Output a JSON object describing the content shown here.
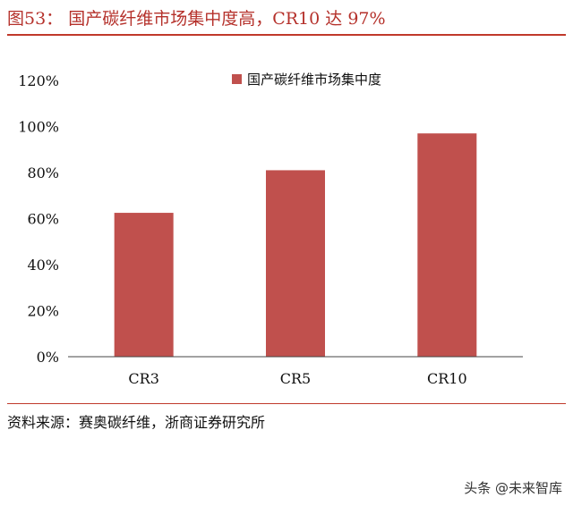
{
  "figure": {
    "title": "图53：  国产碳纤维市场集中度高，CR10 达 97%",
    "source": "资料来源：赛奥碳纤维，浙商证券研究所",
    "watermark": "头条 @未来智库"
  },
  "chart_data": {
    "type": "bar",
    "categories": [
      "CR3",
      "CR5",
      "CR10"
    ],
    "series": [
      {
        "name": "国产碳纤维市场集中度",
        "values": [
          62.5,
          81,
          97
        ],
        "color": "#c0504d"
      }
    ],
    "ylim": [
      0,
      120
    ],
    "yticks": [
      "0%",
      "20%",
      "40%",
      "60%",
      "80%",
      "100%",
      "120%"
    ],
    "ytick_values": [
      0,
      20,
      40,
      60,
      80,
      100,
      120
    ],
    "grid": false,
    "legend_position": "top-right"
  }
}
